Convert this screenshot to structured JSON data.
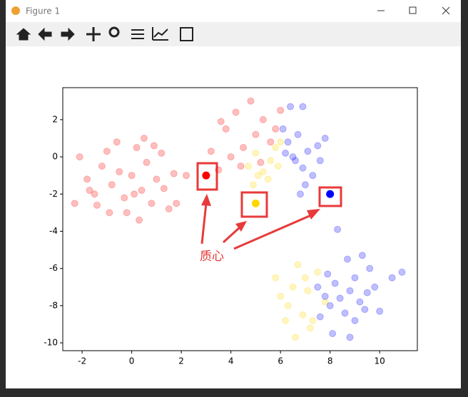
{
  "window_title": "Figure 1",
  "chart_data": {
    "type": "scatter",
    "annotation": "质心",
    "xlim": [
      -2.78,
      11.52
    ],
    "ylim": [
      -10.42,
      3.72
    ],
    "xticks": [
      -2,
      0,
      2,
      4,
      6,
      8,
      10
    ],
    "yticks": [
      2,
      0,
      -2,
      -4,
      -6,
      -8,
      -10
    ],
    "series": [
      {
        "color": "#ff0000",
        "alpha": 0.25,
        "x": [
          -2.1,
          -1.8,
          -1.5,
          -1.2,
          -1,
          -0.8,
          -0.5,
          -0.3,
          0,
          0.2,
          0.4,
          0.6,
          0.8,
          1,
          1.2,
          1.5,
          1.7,
          -0.2,
          0.3,
          -1.4,
          -0.6,
          0.5,
          1.3,
          -2.3,
          -1.7,
          0.1,
          -0.9,
          1.8,
          2.2,
          0.9,
          3.2,
          3.5,
          3.8,
          4.2,
          4.5,
          4.8,
          5,
          5.3,
          5.6,
          5.8,
          4,
          3.6,
          5.2,
          6,
          4.4
        ],
        "values": [
          0,
          -1.2,
          -2,
          -0.5,
          0.3,
          -1.5,
          -0.8,
          -2.2,
          -1,
          0.5,
          -1.8,
          -0.3,
          -2.5,
          -1.2,
          0.2,
          -2.8,
          -0.9,
          -3,
          -3.4,
          -2.6,
          0.8,
          1,
          -1.7,
          -2.5,
          -1.8,
          -2,
          -3,
          -2.5,
          -1,
          0.6,
          0.3,
          -0.7,
          1.5,
          2.4,
          0.5,
          3,
          1.2,
          2,
          0.8,
          1.5,
          0,
          1.9,
          -0.3,
          2.5,
          -0.5
        ]
      },
      {
        "color": "#ffd700",
        "alpha": 0.25,
        "x": [
          4.7,
          5,
          5.3,
          5.6,
          5.8,
          5.5,
          4.9,
          5.1,
          6,
          5.9,
          5.8,
          6,
          6.3,
          6.5,
          6.7,
          6.9,
          7.1,
          7.3,
          7.5,
          7.2,
          6.6,
          7.8,
          6.2,
          7
        ],
        "values": [
          -0.5,
          0.2,
          -0.8,
          -0.2,
          0.5,
          -1.2,
          -1.5,
          -1,
          0.8,
          -0.5,
          -6.5,
          -7.5,
          -8,
          -7,
          -5.8,
          -8.5,
          -7.2,
          -8.8,
          -6.2,
          -9.2,
          -9.7,
          -7.8,
          -8.8,
          -6.5
        ]
      },
      {
        "color": "#0000ff",
        "alpha": 0.25,
        "x": [
          6.1,
          6.3,
          6.5,
          6.7,
          6.9,
          7.1,
          7.3,
          7.5,
          6.4,
          6.9,
          7,
          6.6,
          7.6,
          6.2,
          7.8,
          6.8,
          7.5,
          7.8,
          8,
          8.2,
          8.4,
          8.6,
          8.8,
          9,
          9.2,
          9.4,
          9.6,
          9.8,
          10,
          10.5,
          10.9,
          8.7,
          9.3,
          8.1,
          8.8,
          7.6,
          8.3,
          9,
          9.5,
          7.9
        ],
        "values": [
          1.5,
          0.8,
          0,
          1.2,
          -0.6,
          0.3,
          -1,
          0.6,
          2.7,
          2.7,
          -1.5,
          -0.2,
          -0.2,
          0.2,
          1,
          -2,
          -7,
          -7.5,
          -8,
          -6.8,
          -7.6,
          -8.4,
          -7.2,
          -6.5,
          -7.8,
          -8.2,
          -6,
          -7,
          -8.3,
          -6.5,
          -6.2,
          -5.5,
          -5.3,
          -9.5,
          -9.7,
          -8.6,
          -3.9,
          -8.8,
          -7.3,
          -6.3
        ]
      },
      {
        "color": "#ff0000",
        "alpha": 1,
        "x": [
          3
        ],
        "values": [
          -1
        ]
      },
      {
        "color": "#ffd700",
        "alpha": 1,
        "x": [
          5
        ],
        "values": [
          -2.5
        ]
      },
      {
        "color": "#0000ff",
        "alpha": 1,
        "x": [
          8
        ],
        "values": [
          -2
        ]
      }
    ]
  }
}
